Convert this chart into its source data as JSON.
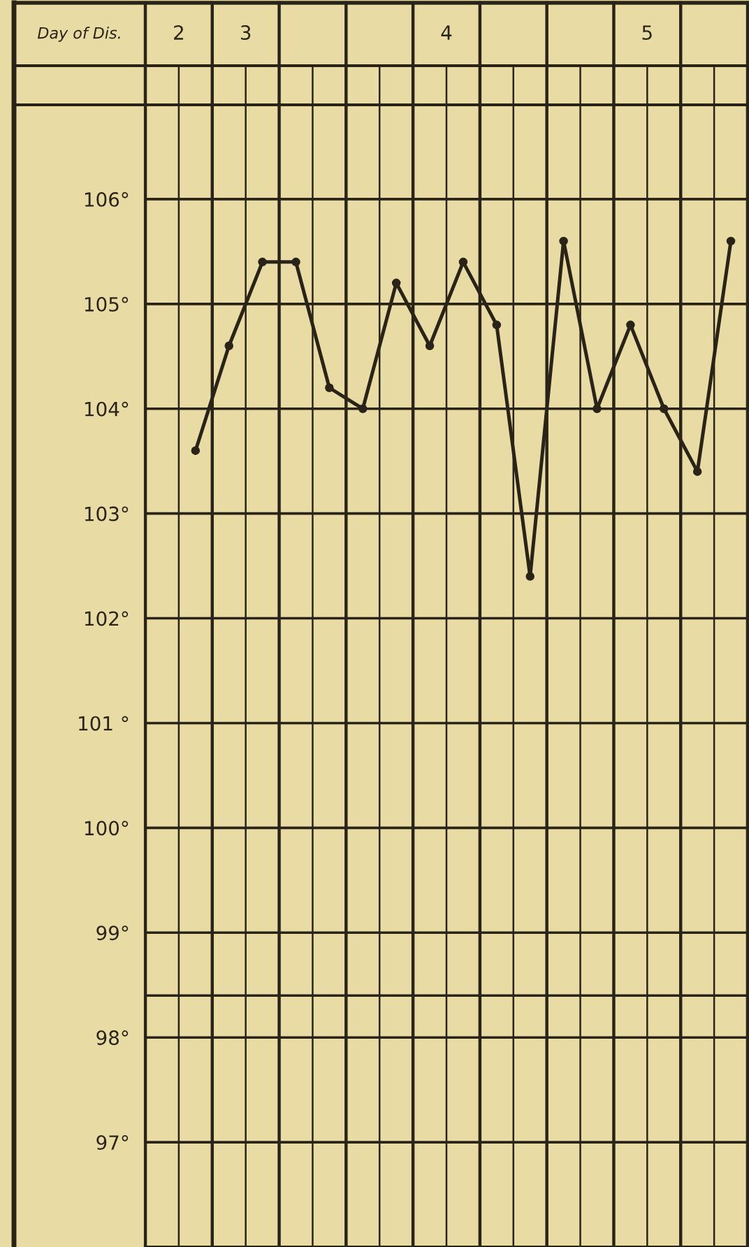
{
  "chart_data": {
    "type": "line",
    "categories": [
      null,
      null,
      null,
      null,
      null,
      null,
      null,
      null,
      null,
      null,
      null,
      null,
      null,
      null,
      null,
      null,
      null,
      null
    ],
    "series": [
      {
        "color": "#2a2418",
        "values": [
          null,
          103.6,
          104.6,
          105.4,
          105.4,
          104.2,
          104.0,
          105.2,
          104.6,
          105.4,
          104.8,
          102.4,
          105.6,
          104.0,
          104.8,
          104.0,
          103.4,
          105.6
        ]
      }
    ],
    "ylim": [
      96.0,
      106.9
    ],
    "yticks": [
      {
        "value": 97,
        "label": "97°"
      },
      {
        "value": 98,
        "label": "98°"
      },
      {
        "value": 99,
        "label": "99°"
      },
      {
        "value": 100,
        "label": "100°"
      },
      {
        "value": 101,
        "label": "101 °"
      },
      {
        "value": 102,
        "label": "102°"
      },
      {
        "value": 103,
        "label": "103°"
      },
      {
        "value": 104,
        "label": "104°"
      },
      {
        "value": 105,
        "label": "105°"
      },
      {
        "value": 106,
        "label": "106°"
      }
    ],
    "annotations": [
      "Day of Dis.",
      "2",
      "3",
      "4",
      "5"
    ],
    "ref_lines": [
      {
        "axis": "y",
        "value": 98.4,
        "color": "#2a2418"
      }
    ],
    "grid": true,
    "marker": "circle",
    "line_style": "solid",
    "legend": false
  }
}
